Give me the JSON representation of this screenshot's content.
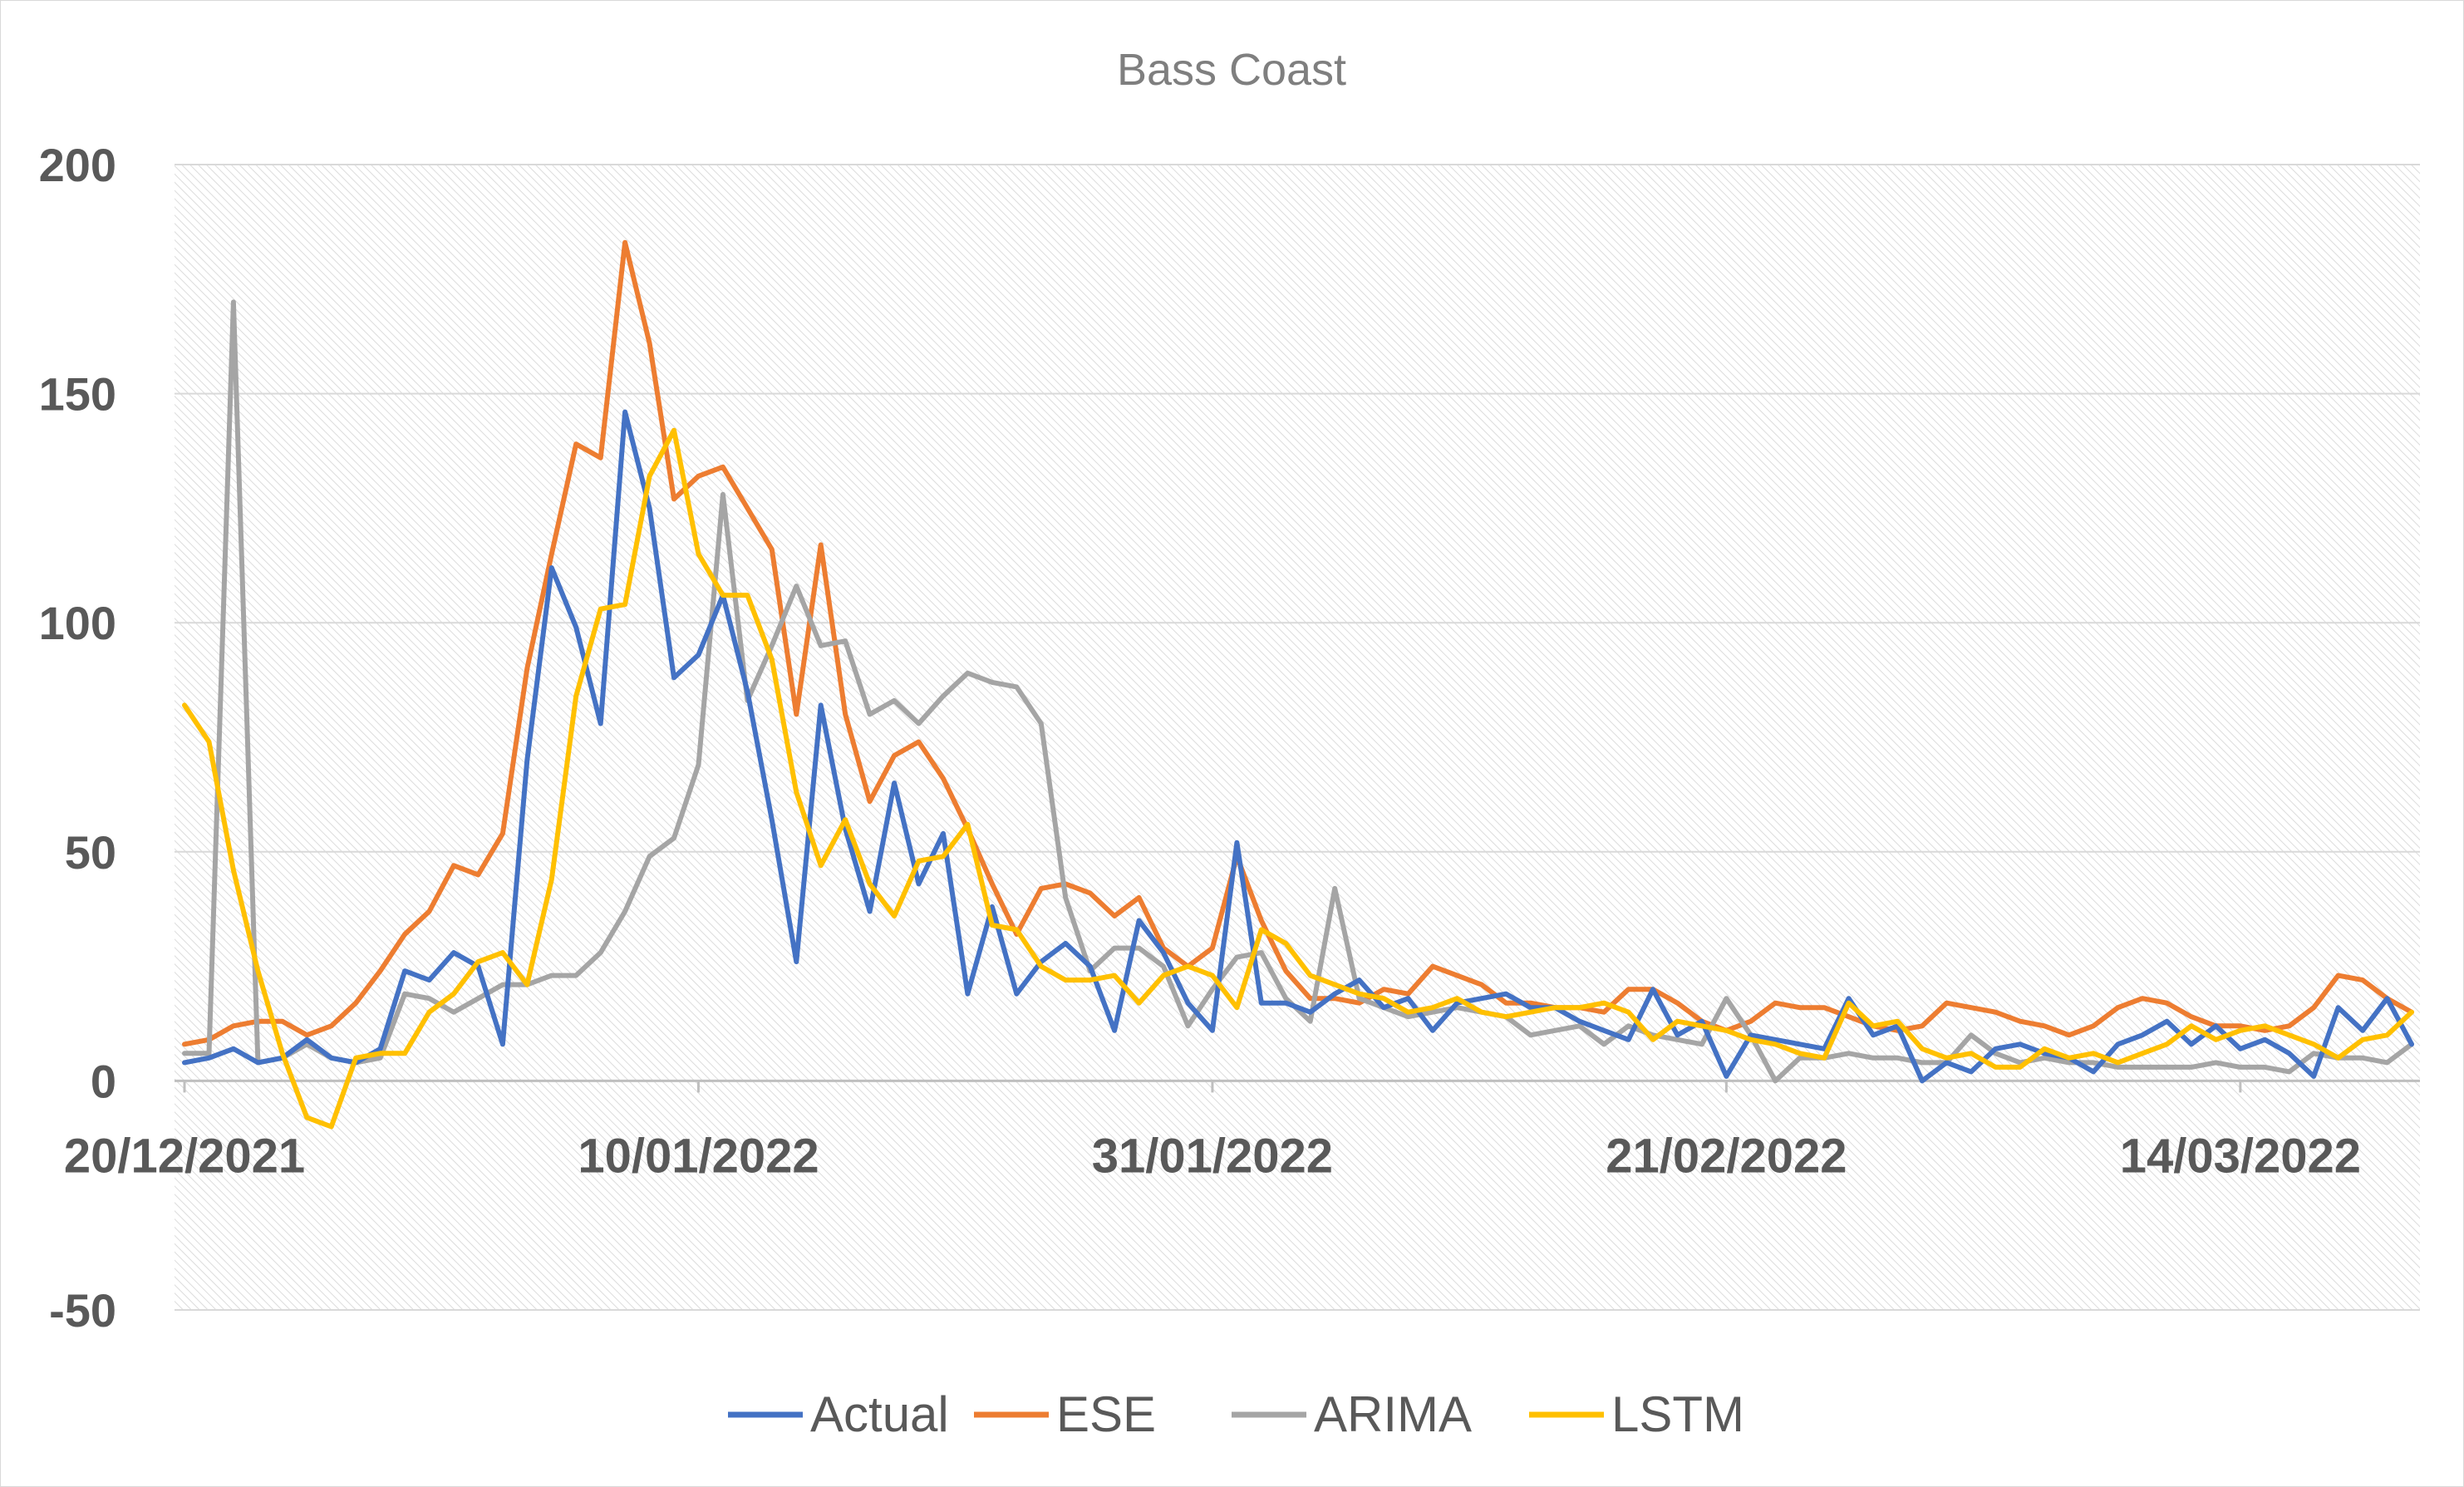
{
  "chart_data": {
    "type": "line",
    "title": "Bass Coast",
    "xlabel": "",
    "ylabel": "",
    "ylim": [
      -50,
      200
    ],
    "yticks": [
      -50,
      0,
      50,
      100,
      150,
      200
    ],
    "x_start": "20/12/2021",
    "x_tick_labels": [
      "20/12/2021",
      "10/01/2022",
      "31/01/2022",
      "21/02/2022",
      "14/03/2022"
    ],
    "x_tick_day_offsets": [
      0,
      21,
      42,
      63,
      84
    ],
    "grid": true,
    "legend": "bottom",
    "series": [
      {
        "name": "Actual",
        "color": "#4472c4",
        "values": [
          4,
          5,
          7,
          4,
          5,
          9,
          5,
          4,
          7,
          24,
          22,
          28,
          25,
          8,
          70,
          112,
          99,
          78,
          146,
          125,
          88,
          93,
          106,
          85,
          57,
          26,
          82,
          55,
          37,
          65,
          43,
          54,
          19,
          38,
          19,
          26,
          30,
          25,
          11,
          35,
          28,
          17,
          11,
          52,
          17,
          17,
          15,
          19,
          22,
          16,
          18,
          11,
          17,
          18,
          19,
          16,
          16,
          13,
          11,
          9,
          20,
          10,
          13,
          1,
          10,
          9,
          8,
          7,
          18,
          10,
          12,
          0,
          4,
          2,
          7,
          8,
          6,
          5,
          2,
          8,
          10,
          13,
          8,
          12,
          7,
          9,
          6,
          1,
          16,
          11,
          18,
          8
        ],
        "data_note": "daily values from 20/12/2021"
      },
      {
        "name": "ESE",
        "color": "#ed7d31",
        "values": [
          8,
          9,
          12,
          13,
          13,
          10,
          12,
          17,
          24,
          32,
          37,
          47,
          45,
          54,
          90,
          115,
          139,
          136,
          183,
          161,
          127,
          132,
          134,
          125,
          116,
          80,
          117,
          80,
          61,
          71,
          74,
          66,
          55,
          43,
          32,
          42,
          43,
          41,
          36,
          40,
          29,
          25,
          29,
          49,
          35,
          24,
          18,
          18,
          17,
          20,
          19,
          25,
          23,
          21,
          17,
          17,
          16,
          16,
          15,
          20,
          20,
          17,
          13,
          11,
          13,
          17,
          16,
          16,
          14,
          12,
          11,
          12,
          17,
          16,
          15,
          13,
          12,
          10,
          12,
          16,
          18,
          17,
          14,
          12,
          12,
          11,
          12,
          16,
          23,
          22,
          18,
          15
        ]
      },
      {
        "name": "ARIMA",
        "color": "#a5a5a5",
        "values": [
          6,
          6,
          170,
          4,
          5,
          8,
          5,
          4,
          5,
          19,
          18,
          15,
          18,
          21,
          21,
          23,
          23,
          28,
          37,
          49,
          53,
          69,
          128,
          83,
          95,
          108,
          95,
          96,
          80,
          83,
          78,
          84,
          89,
          87,
          86,
          78,
          40,
          24,
          29,
          29,
          25,
          12,
          20,
          27,
          28,
          18,
          13,
          42,
          18,
          16,
          14,
          15,
          16,
          15,
          14,
          10,
          11,
          12,
          8,
          12,
          10,
          9,
          8,
          18,
          10,
          0,
          5,
          5,
          6,
          5,
          5,
          4,
          4,
          10,
          6,
          4,
          5,
          4,
          4,
          3,
          3,
          3,
          3,
          4,
          3,
          3,
          2,
          6,
          5,
          5,
          4,
          8
        ]
      },
      {
        "name": "LSTM",
        "color": "#ffc000",
        "values": [
          82,
          74,
          46,
          24,
          6,
          -8,
          -10,
          5,
          6,
          6,
          15,
          19,
          26,
          28,
          21,
          44,
          84,
          103,
          104,
          132,
          142,
          115,
          106,
          106,
          92,
          63,
          47,
          57,
          43,
          36,
          48,
          49,
          56,
          34,
          33,
          25,
          22,
          22,
          23,
          17,
          23,
          25,
          23,
          16,
          33,
          30,
          23,
          21,
          19,
          18,
          15,
          16,
          18,
          15,
          14,
          15,
          16,
          16,
          17,
          15,
          9,
          13,
          12,
          11,
          9,
          8,
          6,
          5,
          17,
          12,
          13,
          7,
          5,
          6,
          3,
          3,
          7,
          5,
          6,
          4,
          6,
          8,
          12,
          9,
          11,
          12,
          10,
          8,
          5,
          9,
          10,
          15
        ]
      }
    ]
  }
}
